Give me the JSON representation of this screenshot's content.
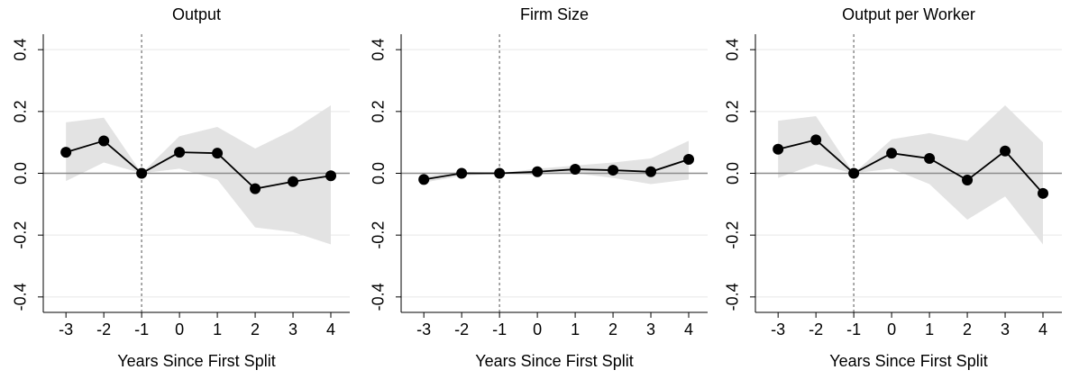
{
  "chart_data": [
    {
      "type": "line",
      "title": "Output",
      "x_label": "Years Since First Split",
      "x": [
        -3,
        -2,
        -1,
        0,
        1,
        2,
        3,
        4
      ],
      "values": [
        0.068,
        0.105,
        0,
        0.068,
        0.065,
        -0.05,
        -0.027,
        -0.008
      ],
      "lower": [
        -0.025,
        0.035,
        0,
        0.015,
        -0.02,
        -0.175,
        -0.19,
        -0.23
      ],
      "upper": [
        0.165,
        0.18,
        0,
        0.12,
        0.15,
        0.08,
        0.14,
        0.22
      ],
      "color": "#000000",
      "band_color": "#e3e3e3",
      "xlim": [
        -3.6,
        4.5
      ],
      "ylim": [
        -0.45,
        0.45
      ],
      "xticks": [
        -3,
        -2,
        -1,
        0,
        1,
        2,
        3,
        4
      ],
      "yticks": [
        -0.4,
        -0.2,
        {
          "value": 0,
          "label": "0.0"
        },
        0.2,
        0.4
      ],
      "grid": true,
      "hline": 0,
      "vline": -1
    },
    {
      "type": "line",
      "title": "Firm Size",
      "x_label": "Years Since First Split",
      "x": [
        -3,
        -2,
        -1,
        0,
        1,
        2,
        3,
        4
      ],
      "values": [
        -0.02,
        0,
        0,
        0.005,
        0.013,
        0.01,
        0.005,
        0.045
      ],
      "lower": [
        -0.03,
        -0.008,
        0,
        -0.005,
        0,
        -0.015,
        -0.035,
        -0.02
      ],
      "upper": [
        -0.01,
        0.005,
        0,
        0.015,
        0.025,
        0.035,
        0.048,
        0.105
      ],
      "color": "#000000",
      "band_color": "#e3e3e3",
      "xlim": [
        -3.6,
        4.5
      ],
      "ylim": [
        -0.45,
        0.45
      ],
      "xticks": [
        -3,
        -2,
        -1,
        0,
        1,
        2,
        3,
        4
      ],
      "yticks": [
        -0.4,
        -0.2,
        {
          "value": 0,
          "label": "0.0"
        },
        0.2,
        0.4
      ],
      "grid": true,
      "hline": 0,
      "vline": -1
    },
    {
      "type": "line",
      "title": "Output per Worker",
      "x_label": "Years Since First Split",
      "x": [
        -3,
        -2,
        -1,
        0,
        1,
        2,
        3,
        4
      ],
      "values": [
        0.078,
        0.108,
        0,
        0.065,
        0.048,
        -0.022,
        0.072,
        -0.065
      ],
      "lower": [
        -0.015,
        0.03,
        0,
        0.015,
        -0.035,
        -0.15,
        -0.075,
        -0.23
      ],
      "upper": [
        0.17,
        0.185,
        0,
        0.11,
        0.13,
        0.105,
        0.22,
        0.1
      ],
      "color": "#000000",
      "band_color": "#e3e3e3",
      "xlim": [
        -3.6,
        4.5
      ],
      "ylim": [
        -0.45,
        0.45
      ],
      "xticks": [
        -3,
        -2,
        -1,
        0,
        1,
        2,
        3,
        4
      ],
      "yticks": [
        -0.4,
        -0.2,
        {
          "value": 0,
          "label": "0.0"
        },
        0.2,
        0.4
      ],
      "grid": true,
      "hline": 0,
      "vline": -1
    }
  ]
}
